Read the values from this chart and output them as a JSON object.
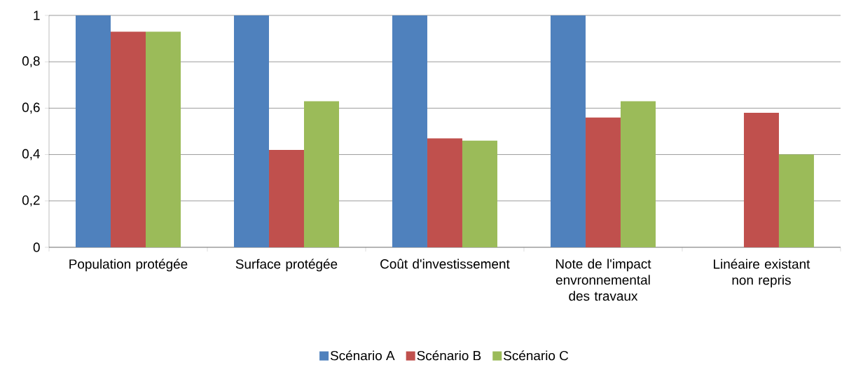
{
  "chart_data": {
    "type": "bar",
    "categories": [
      "Population protégée",
      "Surface protégée",
      "Coût d'investissement",
      "Note de l'impact envronnemental des travaux",
      "Linéaire existant non repris"
    ],
    "series": [
      {
        "name": "Scénario A",
        "color": "#4f81bd",
        "values": [
          1,
          1,
          1,
          1,
          0
        ]
      },
      {
        "name": "Scénario B",
        "color": "#c0504d",
        "values": [
          0.93,
          0.42,
          0.47,
          0.56,
          0.58
        ]
      },
      {
        "name": "Scénario C",
        "color": "#9bbb59",
        "values": [
          0.93,
          0.63,
          0.46,
          0.63,
          0.4
        ]
      }
    ],
    "ylim": [
      0,
      1
    ],
    "yticks": [
      0,
      {
        "value": 0.2,
        "label": "0,2"
      },
      {
        "value": 0.4,
        "label": "0,4"
      },
      {
        "value": 0.6,
        "label": "0,6"
      },
      {
        "value": 0.8,
        "label": "0,8"
      },
      1
    ],
    "grid": "y",
    "legend": "bottom"
  }
}
